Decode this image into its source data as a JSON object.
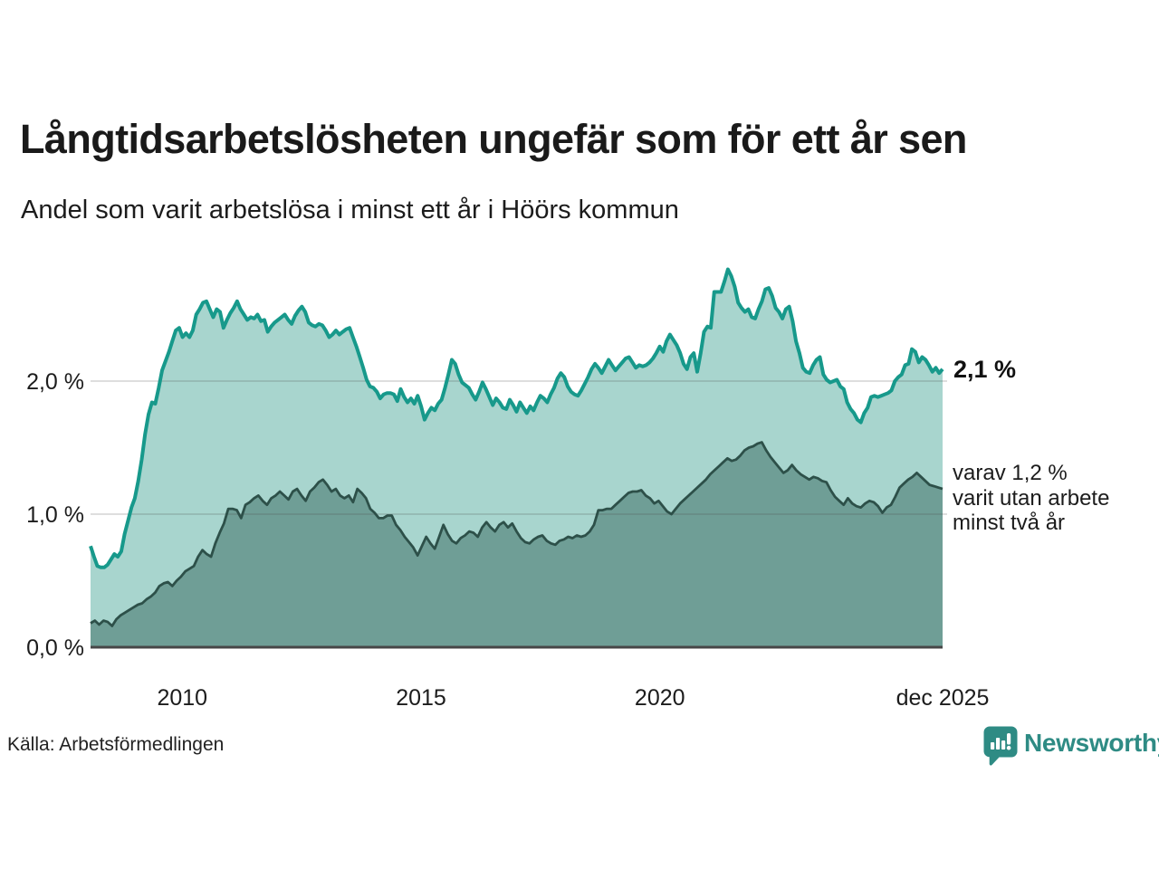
{
  "header": {
    "title": "Långtidsarbetslösheten ungefär som för ett år sen",
    "subtitle": "Andel som varit arbetslösa i minst ett år i Höörs kommun"
  },
  "annotations": {
    "latest_total": "2,1 %",
    "two_year_lines": [
      "varav 1,2 %",
      "varit utan arbete",
      "minst två år"
    ]
  },
  "footer": {
    "source": "Källa: Arbetsförmedlingen",
    "brand": "Newsworthy"
  },
  "colors": {
    "line_total": "#17998b",
    "fill_total": "#a8d5ce",
    "line_two_years": "#2d5049",
    "fill_two_years": "#6f9e96",
    "grid": "rgba(70,70,70,0.18)",
    "baseline": "#474747",
    "brand_teal": "#2e8b84"
  },
  "chart_data": {
    "type": "area",
    "title": "Långtidsarbetslösheten ungefär som för ett år sen",
    "subtitle": "Andel som varit arbetslösa i minst ett år i Höörs kommun",
    "unit": "%",
    "x_range": {
      "start": 2008.08,
      "end": 2025.92
    },
    "ylim": [
      0,
      2.9
    ],
    "grid": "horizontal",
    "y_axis": {
      "ticks": [
        {
          "value": 0,
          "label": "0,0 %"
        },
        {
          "value": 1,
          "label": "1,0 %"
        },
        {
          "value": 2,
          "label": "2,0 %"
        }
      ]
    },
    "x_axis": {
      "ticks": [
        {
          "year": 2010,
          "label": "2010"
        },
        {
          "year": 2015,
          "label": "2015"
        },
        {
          "year": 2020,
          "label": "2020"
        },
        {
          "year": 2025.92,
          "label": "dec 2025"
        }
      ]
    },
    "series": [
      {
        "name": "arbetslösa minst ett år",
        "latest_value": 2.1,
        "values": [
          0.76,
          0.68,
          0.61,
          0.6,
          0.6,
          0.62,
          0.66,
          0.7,
          0.68,
          0.72,
          0.85,
          0.95,
          1.05,
          1.12,
          1.25,
          1.41,
          1.6,
          1.75,
          1.84,
          1.83,
          1.95,
          2.08,
          2.15,
          2.22,
          2.3,
          2.38,
          2.4,
          2.33,
          2.36,
          2.33,
          2.38,
          2.5,
          2.54,
          2.59,
          2.6,
          2.54,
          2.48,
          2.54,
          2.52,
          2.4,
          2.46,
          2.51,
          2.55,
          2.6,
          2.54,
          2.5,
          2.46,
          2.48,
          2.47,
          2.5,
          2.45,
          2.46,
          2.37,
          2.41,
          2.44,
          2.46,
          2.48,
          2.5,
          2.46,
          2.43,
          2.49,
          2.53,
          2.56,
          2.52,
          2.44,
          2.42,
          2.41,
          2.43,
          2.42,
          2.38,
          2.33,
          2.35,
          2.38,
          2.35,
          2.37,
          2.39,
          2.4,
          2.33,
          2.26,
          2.18,
          2.1,
          2.01,
          1.96,
          1.95,
          1.92,
          1.87,
          1.9,
          1.91,
          1.91,
          1.9,
          1.85,
          1.94,
          1.88,
          1.84,
          1.87,
          1.83,
          1.89,
          1.81,
          1.71,
          1.76,
          1.8,
          1.78,
          1.83,
          1.86,
          1.95,
          2.05,
          2.16,
          2.13,
          2.05,
          1.99,
          1.97,
          1.95,
          1.9,
          1.86,
          1.92,
          1.99,
          1.94,
          1.88,
          1.82,
          1.87,
          1.84,
          1.8,
          1.79,
          1.86,
          1.82,
          1.77,
          1.84,
          1.8,
          1.76,
          1.81,
          1.78,
          1.84,
          1.89,
          1.87,
          1.84,
          1.9,
          1.95,
          2.02,
          2.06,
          2.03,
          1.96,
          1.92,
          1.9,
          1.89,
          1.93,
          1.98,
          2.03,
          2.09,
          2.13,
          2.1,
          2.06,
          2.11,
          2.16,
          2.12,
          2.08,
          2.11,
          2.14,
          2.17,
          2.18,
          2.14,
          2.1,
          2.12,
          2.11,
          2.12,
          2.14,
          2.17,
          2.21,
          2.26,
          2.22,
          2.3,
          2.35,
          2.31,
          2.27,
          2.21,
          2.13,
          2.09,
          2.18,
          2.21,
          2.07,
          2.21,
          2.37,
          2.41,
          2.4,
          2.67,
          2.67,
          2.67,
          2.75,
          2.84,
          2.79,
          2.71,
          2.59,
          2.55,
          2.52,
          2.54,
          2.48,
          2.47,
          2.54,
          2.6,
          2.69,
          2.7,
          2.64,
          2.55,
          2.52,
          2.47,
          2.54,
          2.56,
          2.45,
          2.3,
          2.21,
          2.1,
          2.07,
          2.06,
          2.12,
          2.16,
          2.18,
          2.05,
          2.01,
          1.99,
          2.0,
          2.01,
          1.96,
          1.94,
          1.84,
          1.79,
          1.76,
          1.71,
          1.69,
          1.76,
          1.8,
          1.88,
          1.89,
          1.88,
          1.89,
          1.9,
          1.91,
          1.93,
          2.0,
          2.03,
          2.05,
          2.12,
          2.13,
          2.24,
          2.22,
          2.14,
          2.18,
          2.16,
          2.12,
          2.07,
          2.1,
          2.06,
          2.09
        ]
      },
      {
        "name": "utan arbete minst två år",
        "latest_value": 1.2,
        "values": [
          0.18,
          0.2,
          0.17,
          0.2,
          0.19,
          0.16,
          0.21,
          0.24,
          0.26,
          0.28,
          0.3,
          0.32,
          0.33,
          0.36,
          0.38,
          0.41,
          0.46,
          0.48,
          0.49,
          0.46,
          0.5,
          0.53,
          0.57,
          0.59,
          0.61,
          0.68,
          0.73,
          0.7,
          0.68,
          0.78,
          0.86,
          0.93,
          1.04,
          1.04,
          1.03,
          0.97,
          1.07,
          1.09,
          1.12,
          1.14,
          1.1,
          1.07,
          1.12,
          1.14,
          1.17,
          1.14,
          1.11,
          1.17,
          1.19,
          1.14,
          1.1,
          1.17,
          1.2,
          1.24,
          1.26,
          1.22,
          1.17,
          1.19,
          1.14,
          1.12,
          1.14,
          1.09,
          1.19,
          1.16,
          1.12,
          1.04,
          1.01,
          0.97,
          0.97,
          0.99,
          0.99,
          0.92,
          0.88,
          0.83,
          0.79,
          0.75,
          0.69,
          0.76,
          0.83,
          0.78,
          0.74,
          0.83,
          0.92,
          0.85,
          0.8,
          0.78,
          0.82,
          0.84,
          0.87,
          0.86,
          0.83,
          0.9,
          0.94,
          0.9,
          0.87,
          0.92,
          0.94,
          0.9,
          0.93,
          0.87,
          0.82,
          0.79,
          0.78,
          0.81,
          0.83,
          0.84,
          0.8,
          0.78,
          0.77,
          0.8,
          0.81,
          0.83,
          0.82,
          0.84,
          0.83,
          0.84,
          0.87,
          0.92,
          1.03,
          1.03,
          1.04,
          1.04,
          1.07,
          1.1,
          1.13,
          1.16,
          1.17,
          1.17,
          1.18,
          1.14,
          1.12,
          1.08,
          1.1,
          1.06,
          1.02,
          1.0,
          1.04,
          1.08,
          1.11,
          1.14,
          1.17,
          1.2,
          1.23,
          1.26,
          1.3,
          1.33,
          1.36,
          1.39,
          1.42,
          1.4,
          1.41,
          1.44,
          1.48,
          1.5,
          1.51,
          1.53,
          1.54,
          1.48,
          1.43,
          1.39,
          1.35,
          1.31,
          1.33,
          1.37,
          1.33,
          1.3,
          1.28,
          1.26,
          1.28,
          1.27,
          1.25,
          1.24,
          1.18,
          1.13,
          1.1,
          1.07,
          1.12,
          1.08,
          1.06,
          1.05,
          1.08,
          1.1,
          1.09,
          1.06,
          1.01,
          1.05,
          1.07,
          1.13,
          1.2,
          1.23,
          1.26,
          1.28,
          1.31,
          1.28,
          1.25,
          1.22,
          1.21,
          1.2,
          1.19
        ]
      }
    ]
  }
}
